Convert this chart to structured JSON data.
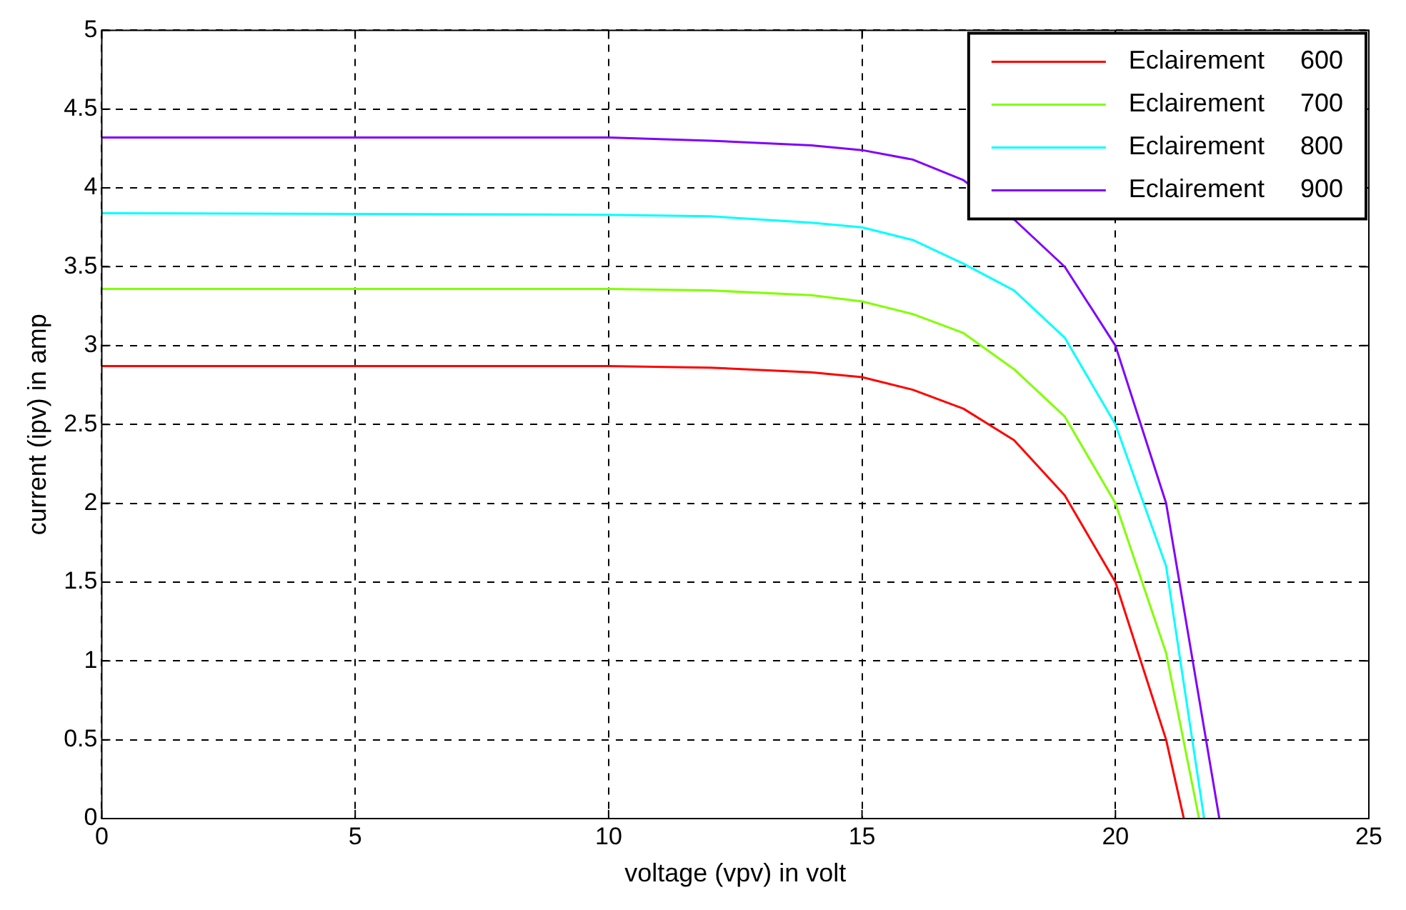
{
  "chart_data": {
    "type": "line",
    "xlabel": "voltage (vpv) in volt",
    "ylabel": "current (ipv) in amp",
    "xlim": [
      0,
      25
    ],
    "xticks": [
      0,
      5,
      10,
      15,
      20,
      25
    ],
    "ylim": [
      0,
      5
    ],
    "yticks": [
      0,
      0.5,
      1,
      1.5,
      2,
      2.5,
      3,
      3.5,
      4,
      4.5,
      5
    ],
    "grid": true,
    "legend": "top right",
    "line_style": "solid",
    "marker": "none",
    "series": [
      {
        "name": "Eclairement     600",
        "color": "#ff0000",
        "x": [
          0,
          10,
          12,
          14,
          15,
          16,
          17,
          18,
          19,
          20,
          21,
          21.35
        ],
        "values": [
          2.87,
          2.87,
          2.86,
          2.83,
          2.8,
          2.72,
          2.6,
          2.4,
          2.05,
          1.5,
          0.5,
          0
        ]
      },
      {
        "name": "Eclairement     700",
        "color": "#80ff00",
        "x": [
          0,
          10,
          12,
          14,
          15,
          16,
          17,
          18,
          19,
          20,
          21,
          21.65
        ],
        "values": [
          3.36,
          3.36,
          3.35,
          3.32,
          3.28,
          3.2,
          3.08,
          2.85,
          2.55,
          2.0,
          1.05,
          0
        ]
      },
      {
        "name": "Eclairement     800",
        "color": "#00ffff",
        "x": [
          0,
          10,
          12,
          14,
          15,
          16,
          17,
          18,
          19,
          20,
          21,
          21.75
        ],
        "values": [
          3.84,
          3.83,
          3.82,
          3.78,
          3.75,
          3.67,
          3.52,
          3.35,
          3.05,
          2.5,
          1.6,
          0
        ]
      },
      {
        "name": "Eclairement     900",
        "color": "#8000ff",
        "x": [
          0,
          10,
          12,
          14,
          15,
          16,
          17,
          18,
          19,
          20,
          21,
          22.05
        ],
        "values": [
          4.32,
          4.32,
          4.3,
          4.27,
          4.24,
          4.18,
          4.05,
          3.8,
          3.5,
          3.0,
          2.0,
          0
        ]
      }
    ]
  }
}
